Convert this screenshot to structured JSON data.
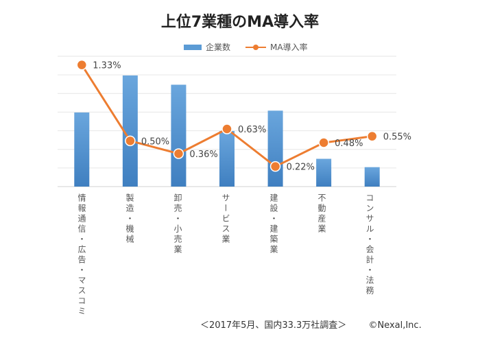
{
  "chart_data": {
    "type": "bar",
    "title": "上位7業種のMA導入率",
    "categories": [
      "情報通信・広告・マスコミ",
      "製造・機械",
      "卸売・小売業",
      "サービス業",
      "建設・建築業",
      "不動産業",
      "コンサル・会計・法務"
    ],
    "series": [
      {
        "name": "企業数",
        "type": "bar",
        "values": [
          4.0,
          6.0,
          5.5,
          3.0,
          4.1,
          1.5,
          1.05
        ],
        "color": "#5b9bd5"
      },
      {
        "name": "MA導入率",
        "type": "line",
        "values": [
          1.33,
          0.5,
          0.36,
          0.63,
          0.22,
          0.48,
          0.55
        ],
        "labels": [
          "1.33%",
          "0.50%",
          "0.36%",
          "0.63%",
          "0.22%",
          "0.48%",
          "0.55%"
        ],
        "color": "#ed7d31"
      }
    ],
    "bar_axis": {
      "ylim": [
        0,
        6
      ]
    },
    "line_axis": {
      "ylim": [
        0,
        1.5
      ]
    },
    "grid": true,
    "legend": "top-center"
  },
  "footer": {
    "source": "＜2017年5月、国内33.3万社調査＞",
    "copyright": "©Nexal,Inc."
  }
}
